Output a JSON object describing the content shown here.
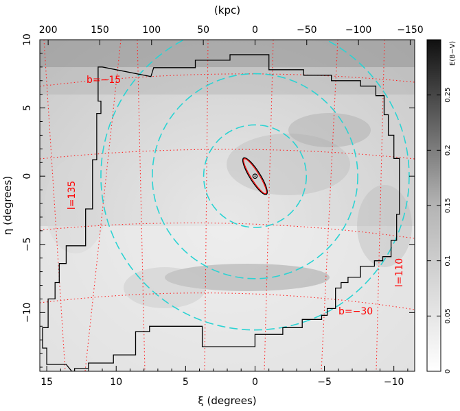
{
  "chart_data": {
    "type": "heatmap",
    "title": "",
    "xlabel": "ξ (degrees)",
    "ylabel": "η (degrees)",
    "top_axis_label": "(kpc)",
    "xlim": [
      15.5,
      -11.5
    ],
    "ylim": [
      -14.3,
      10
    ],
    "x_ticks": [
      15,
      10,
      5,
      0,
      -5,
      -10
    ],
    "x_tick_labels": [
      "15",
      "10",
      "5",
      "0",
      "−5",
      "−10"
    ],
    "y_ticks": [
      10,
      5,
      0,
      -5,
      -10
    ],
    "y_tick_labels": [
      "10",
      "5",
      "0",
      "−5",
      "−10"
    ],
    "top_ticks": [
      200,
      150,
      100,
      50,
      0,
      -50,
      -100,
      -150
    ],
    "top_tick_labels": [
      "200",
      "150",
      "100",
      "50",
      "0",
      "−50",
      "−100",
      "−150"
    ],
    "colorbar": {
      "label": "E(B−V)",
      "range": [
        0,
        0.3
      ],
      "ticks": [
        0,
        0.05,
        0.1,
        0.15,
        0.2,
        0.25
      ],
      "tick_labels": [
        "0",
        "0.05",
        "0.1",
        "0.15",
        "0.2",
        "0.25"
      ],
      "colormap": "white-to-black"
    },
    "circles": [
      {
        "name": "",
        "center": [
          0,
          0
        ],
        "radius_deg": 3.7,
        "color": "#2bd3d3"
      },
      {
        "name": "",
        "center": [
          0,
          0
        ],
        "radius_deg": 7.4,
        "color": "#2bd3d3"
      },
      {
        "name": "",
        "center": [
          0,
          0
        ],
        "radius_deg": 11.1,
        "color": "#2bd3d3"
      }
    ],
    "ellipse": {
      "center": [
        0,
        0
      ],
      "semi_major_deg": 1.55,
      "semi_minor_deg": 0.3,
      "position_angle_deg": 38,
      "color": "#ff0000"
    },
    "center_marker": {
      "x": 0,
      "y": 0
    },
    "galactic_grid_labels": [
      {
        "text": "b=−15",
        "color": "#ff0000"
      },
      {
        "text": "b=−30",
        "color": "#ff0000"
      },
      {
        "text": "l=135",
        "color": "#ff0000"
      },
      {
        "text": "l=110",
        "color": "#ff0000"
      }
    ],
    "survey_footprint": {
      "color": "#000000",
      "polygon": [
        [
          11.0,
          8.0
        ],
        [
          7.5,
          7.3
        ],
        [
          7.3,
          7.95
        ],
        [
          4.3,
          7.95
        ],
        [
          4.3,
          8.5
        ],
        [
          1.8,
          8.5
        ],
        [
          1.8,
          8.9
        ],
        [
          -1.0,
          8.9
        ],
        [
          -1.0,
          7.8
        ],
        [
          -3.5,
          7.8
        ],
        [
          -3.5,
          7.4
        ],
        [
          -5.5,
          7.4
        ],
        [
          -5.5,
          7.0
        ],
        [
          -7.6,
          7.0
        ],
        [
          -7.6,
          6.6
        ],
        [
          -8.7,
          6.6
        ],
        [
          -8.7,
          5.9
        ],
        [
          -9.3,
          5.9
        ],
        [
          -9.3,
          4.5
        ],
        [
          -9.6,
          4.5
        ],
        [
          -9.6,
          3.0
        ],
        [
          -10.0,
          3.0
        ],
        [
          -10.0,
          1.3
        ],
        [
          -10.4,
          1.3
        ],
        [
          -10.4,
          -2.8
        ],
        [
          -10.2,
          -2.8
        ],
        [
          -10.2,
          -4.7
        ],
        [
          -9.8,
          -4.7
        ],
        [
          -9.8,
          -5.9
        ],
        [
          -9.2,
          -5.9
        ],
        [
          -9.2,
          -6.2
        ],
        [
          -8.6,
          -6.2
        ],
        [
          -8.6,
          -6.6
        ],
        [
          -7.6,
          -6.6
        ],
        [
          -7.6,
          -7.4
        ],
        [
          -6.7,
          -7.4
        ],
        [
          -6.7,
          -7.8
        ],
        [
          -6.2,
          -7.8
        ],
        [
          -6.2,
          -8.2
        ],
        [
          -5.8,
          -8.2
        ],
        [
          -5.8,
          -9.7
        ],
        [
          -5.2,
          -9.7
        ],
        [
          -5.2,
          -10.2
        ],
        [
          -4.8,
          -10.2
        ],
        [
          -4.8,
          -10.5
        ],
        [
          -3.4,
          -10.5
        ],
        [
          -3.4,
          -11.1
        ],
        [
          -2.0,
          -11.1
        ],
        [
          -2.0,
          -11.6
        ],
        [
          0.0,
          -11.6
        ],
        [
          0.0,
          -12.5
        ],
        [
          3.8,
          -12.5
        ],
        [
          3.8,
          -11.0
        ],
        [
          7.6,
          -11.0
        ],
        [
          7.6,
          -11.4
        ],
        [
          8.6,
          -11.4
        ],
        [
          8.6,
          -13.1
        ],
        [
          10.2,
          -13.1
        ],
        [
          10.2,
          -13.7
        ],
        [
          12.0,
          -13.7
        ],
        [
          12.0,
          -14.1
        ],
        [
          13.0,
          -14.1
        ],
        [
          13.0,
          -14.3
        ],
        [
          13.2,
          -14.3
        ],
        [
          13.6,
          -13.8
        ],
        [
          15.0,
          -13.8
        ],
        [
          15.0,
          -12.6
        ],
        [
          15.3,
          -12.6
        ],
        [
          15.3,
          -11.1
        ],
        [
          14.9,
          -11.1
        ],
        [
          14.9,
          -9.0
        ],
        [
          14.4,
          -9.0
        ],
        [
          14.4,
          -7.8
        ],
        [
          14.1,
          -7.8
        ],
        [
          14.1,
          -6.4
        ],
        [
          13.6,
          -6.4
        ],
        [
          13.6,
          -5.1
        ],
        [
          12.2,
          -5.1
        ],
        [
          12.2,
          -2.4
        ],
        [
          11.7,
          -2.4
        ],
        [
          11.7,
          1.2
        ],
        [
          11.4,
          1.2
        ],
        [
          11.4,
          4.6
        ],
        [
          11.1,
          4.6
        ],
        [
          11.1,
          5.5
        ],
        [
          11.3,
          5.5
        ],
        [
          11.3,
          8.0
        ]
      ]
    }
  }
}
